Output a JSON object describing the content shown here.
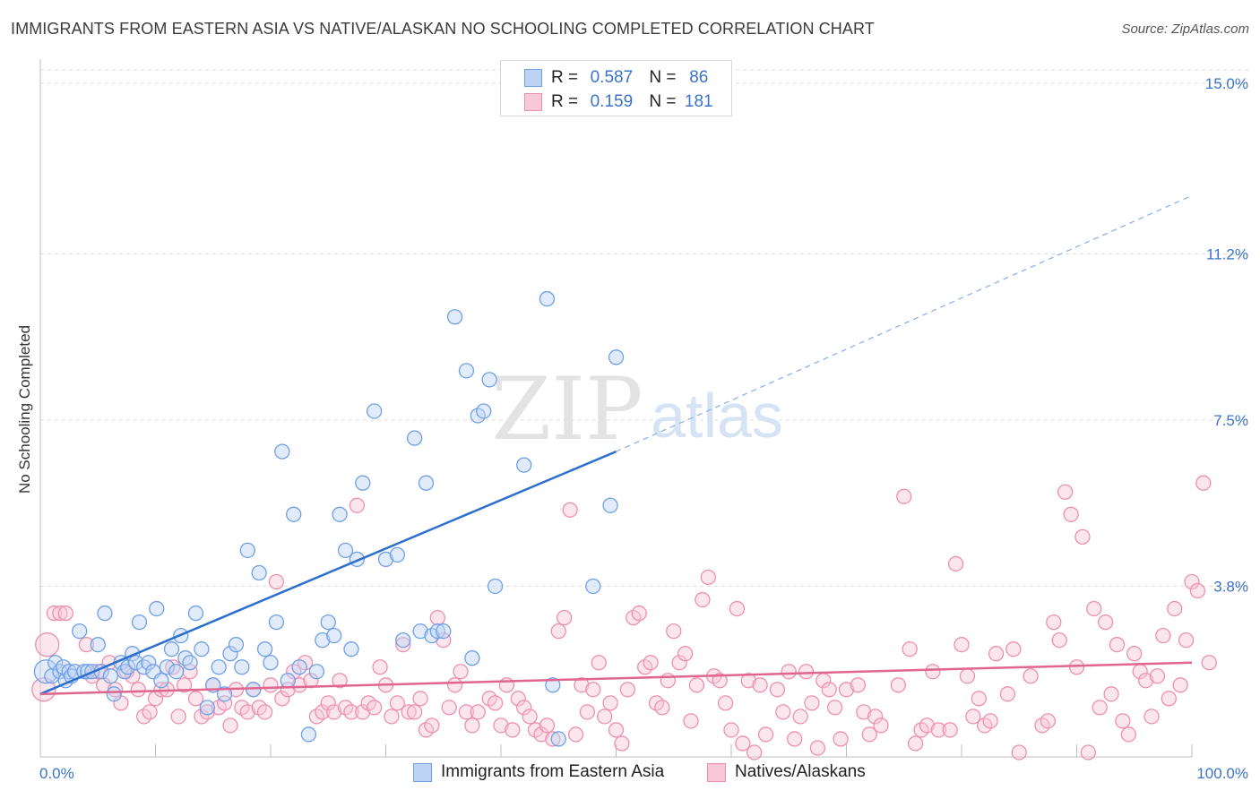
{
  "header": {
    "title": "IMMIGRANTS FROM EASTERN ASIA VS NATIVE/ALASKAN NO SCHOOLING COMPLETED CORRELATION CHART",
    "source": "Source: ZipAtlas.com"
  },
  "watermark": {
    "zip": "ZIP",
    "atlas": "atlas"
  },
  "legend": {
    "r_label": "R =",
    "n_label": "N =",
    "rows": [
      {
        "r": "0.587",
        "n": "86",
        "color": "#6fa0e6",
        "fill": "#bcd3f5"
      },
      {
        "r": "0.159",
        "n": "181",
        "color": "#ee8fae",
        "fill": "#f8c8d8"
      }
    ]
  },
  "bottom_legend": [
    {
      "label": "Immigrants from Eastern Asia",
      "color": "#6fa0e6",
      "fill": "#bcd3f5"
    },
    {
      "label": "Natives/Alaskans",
      "color": "#ee8fae",
      "fill": "#f8c8d8"
    }
  ],
  "chart_data": {
    "type": "scatter",
    "title": "IMMIGRANTS FROM EASTERN ASIA VS NATIVE/ALASKAN NO SCHOOLING COMPLETED CORRELATION CHART",
    "xlabel": "",
    "ylabel": "No Schooling Completed",
    "xlim": [
      0,
      100
    ],
    "ylim": [
      0,
      15.3
    ],
    "x_tick_labels": [
      "0.0%",
      "100.0%"
    ],
    "y_ticks": [
      3.8,
      7.5,
      11.2,
      15.0
    ],
    "y_tick_labels": [
      "3.8%",
      "7.5%",
      "11.2%",
      "15.0%"
    ],
    "grid": true,
    "legend_position": "top-center",
    "series": [
      {
        "name": "Immigrants from Eastern Asia",
        "color": "#6fa0e6",
        "fill": "#bcd3f5",
        "line_color": "#2b6fcf",
        "trend": {
          "x0": 0,
          "y0": 1.4,
          "x1": 50,
          "y1": 6.8,
          "dashed_to_x": 100,
          "dashed_to_y": 12.5
        },
        "points": [
          [
            0.5,
            1.9
          ],
          [
            1,
            1.8
          ],
          [
            1.3,
            2.1
          ],
          [
            1.7,
            1.9
          ],
          [
            2,
            2
          ],
          [
            2.2,
            1.7
          ],
          [
            2.5,
            1.9
          ],
          [
            2.7,
            1.8
          ],
          [
            3,
            1.9
          ],
          [
            3.4,
            2.8
          ],
          [
            3.8,
            1.9
          ],
          [
            4.1,
            1.9
          ],
          [
            4.5,
            1.9
          ],
          [
            5,
            2.5
          ],
          [
            5.3,
            1.9
          ],
          [
            5.6,
            3.2
          ],
          [
            6.1,
            1.8
          ],
          [
            6.4,
            1.4
          ],
          [
            7,
            2.1
          ],
          [
            7.3,
            1.9
          ],
          [
            7.6,
            2
          ],
          [
            8,
            2.3
          ],
          [
            8.3,
            2.1
          ],
          [
            8.6,
            3
          ],
          [
            9,
            2
          ],
          [
            9.4,
            2.1
          ],
          [
            9.8,
            1.9
          ],
          [
            10.1,
            3.3
          ],
          [
            10.5,
            1.7
          ],
          [
            11,
            2
          ],
          [
            11.4,
            2.4
          ],
          [
            11.8,
            1.9
          ],
          [
            12.2,
            2.7
          ],
          [
            12.6,
            2.2
          ],
          [
            13,
            2.1
          ],
          [
            13.5,
            3.2
          ],
          [
            14,
            2.4
          ],
          [
            14.5,
            1.1
          ],
          [
            15,
            1.6
          ],
          [
            15.5,
            2
          ],
          [
            16,
            1.4
          ],
          [
            16.5,
            2.3
          ],
          [
            17,
            2.5
          ],
          [
            17.5,
            2
          ],
          [
            18,
            4.6
          ],
          [
            18.5,
            1.5
          ],
          [
            19,
            4.1
          ],
          [
            19.5,
            2.4
          ],
          [
            20,
            2.1
          ],
          [
            20.5,
            3
          ],
          [
            21,
            6.8
          ],
          [
            21.5,
            1.7
          ],
          [
            22,
            5.4
          ],
          [
            22.5,
            2
          ],
          [
            23.3,
            0.5
          ],
          [
            24,
            1.9
          ],
          [
            24.5,
            2.6
          ],
          [
            25,
            3
          ],
          [
            25.5,
            2.7
          ],
          [
            26,
            5.4
          ],
          [
            26.5,
            4.6
          ],
          [
            27,
            2.4
          ],
          [
            27.5,
            4.4
          ],
          [
            28,
            6.1
          ],
          [
            29,
            7.7
          ],
          [
            30,
            4.4
          ],
          [
            31,
            4.5
          ],
          [
            31.5,
            2.6
          ],
          [
            32.5,
            7.1
          ],
          [
            33,
            2.8
          ],
          [
            33.5,
            6.1
          ],
          [
            34,
            2.7
          ],
          [
            34.5,
            2.8
          ],
          [
            35,
            2.8
          ],
          [
            36,
            9.8
          ],
          [
            37,
            8.6
          ],
          [
            37.5,
            2.2
          ],
          [
            38,
            7.6
          ],
          [
            38.5,
            7.7
          ],
          [
            39,
            8.4
          ],
          [
            39.5,
            3.8
          ],
          [
            42,
            6.5
          ],
          [
            44,
            10.2
          ],
          [
            44.5,
            1.6
          ],
          [
            45,
            0.4
          ],
          [
            48,
            3.8
          ],
          [
            49.5,
            5.6
          ],
          [
            50,
            8.9
          ]
        ]
      },
      {
        "name": "Natives/Alaskans",
        "color": "#ee8fae",
        "fill": "#f8c8d8",
        "line_color": "#e0658f",
        "trend": {
          "x0": 0,
          "y0": 1.4,
          "x1": 100,
          "y1": 2.1
        },
        "points": [
          [
            0.3,
            1.5
          ],
          [
            0.6,
            2.5
          ],
          [
            1.2,
            3.2
          ],
          [
            1.7,
            3.2
          ],
          [
            2.2,
            3.2
          ],
          [
            4,
            2.5
          ],
          [
            4.5,
            1.8
          ],
          [
            5,
            1.9
          ],
          [
            5.5,
            1.6
          ],
          [
            6,
            2.1
          ],
          [
            6.5,
            1.5
          ],
          [
            7,
            1.2
          ],
          [
            7.5,
            1.9
          ],
          [
            8,
            1.8
          ],
          [
            8.5,
            1.5
          ],
          [
            9,
            0.9
          ],
          [
            9.5,
            1
          ],
          [
            10,
            1.3
          ],
          [
            10.5,
            1.5
          ],
          [
            11,
            1.5
          ],
          [
            11.5,
            2
          ],
          [
            12,
            0.9
          ],
          [
            12.5,
            1.6
          ],
          [
            13,
            1.9
          ],
          [
            13.5,
            1.3
          ],
          [
            14,
            0.9
          ],
          [
            14.5,
            1
          ],
          [
            15,
            1.6
          ],
          [
            15.5,
            1.1
          ],
          [
            16,
            1.2
          ],
          [
            16.5,
            0.7
          ],
          [
            17,
            1.5
          ],
          [
            17.5,
            1.1
          ],
          [
            18,
            1
          ],
          [
            18.5,
            1.5
          ],
          [
            19,
            1.1
          ],
          [
            19.5,
            1
          ],
          [
            20,
            1.6
          ],
          [
            20.5,
            3.9
          ],
          [
            21,
            1.3
          ],
          [
            21.5,
            1.5
          ],
          [
            22,
            1.9
          ],
          [
            22.5,
            1.6
          ],
          [
            23,
            2.1
          ],
          [
            23.5,
            1.7
          ],
          [
            24,
            0.9
          ],
          [
            24.5,
            1
          ],
          [
            25,
            1.2
          ],
          [
            25.5,
            1
          ],
          [
            26,
            1.7
          ],
          [
            26.5,
            1.1
          ],
          [
            27,
            1
          ],
          [
            27.5,
            5.6
          ],
          [
            28,
            1
          ],
          [
            28.5,
            1.2
          ],
          [
            29,
            1.1
          ],
          [
            29.5,
            2
          ],
          [
            30,
            1.6
          ],
          [
            30.5,
            0.9
          ],
          [
            31,
            1.2
          ],
          [
            31.5,
            2.5
          ],
          [
            32,
            1
          ],
          [
            32.5,
            1
          ],
          [
            33,
            1.3
          ],
          [
            33.5,
            0.6
          ],
          [
            34,
            0.7
          ],
          [
            34.5,
            3.1
          ],
          [
            35,
            2.6
          ],
          [
            35.5,
            1.1
          ],
          [
            36,
            1.6
          ],
          [
            36.5,
            1.9
          ],
          [
            37,
            1
          ],
          [
            37.5,
            0.7
          ],
          [
            38,
            1
          ],
          [
            39,
            1.3
          ],
          [
            39.5,
            1.2
          ],
          [
            40,
            0.7
          ],
          [
            40.5,
            1.6
          ],
          [
            41,
            0.6
          ],
          [
            41.5,
            1.3
          ],
          [
            42,
            1.1
          ],
          [
            42.5,
            0.9
          ],
          [
            43,
            0.6
          ],
          [
            43.5,
            0.5
          ],
          [
            44,
            0.7
          ],
          [
            44.5,
            0.4
          ],
          [
            45,
            2.8
          ],
          [
            45.5,
            3.1
          ],
          [
            46,
            5.5
          ],
          [
            46.5,
            0.5
          ],
          [
            47,
            1.6
          ],
          [
            47.5,
            1
          ],
          [
            48,
            1.5
          ],
          [
            48.5,
            2.1
          ],
          [
            49,
            0.9
          ],
          [
            49.5,
            1.2
          ],
          [
            50,
            0.6
          ],
          [
            50.5,
            0.3
          ],
          [
            51,
            1.5
          ],
          [
            51.5,
            3.1
          ],
          [
            52,
            3.2
          ],
          [
            52.5,
            2
          ],
          [
            53,
            2.1
          ],
          [
            53.5,
            1.2
          ],
          [
            54,
            1.1
          ],
          [
            54.5,
            1.7
          ],
          [
            55,
            2.8
          ],
          [
            55.5,
            2.1
          ],
          [
            56,
            2.3
          ],
          [
            56.5,
            0.8
          ],
          [
            57,
            1.6
          ],
          [
            57.5,
            3.5
          ],
          [
            58,
            4
          ],
          [
            58.5,
            1.8
          ],
          [
            59,
            1.7
          ],
          [
            59.5,
            1.2
          ],
          [
            60,
            0.6
          ],
          [
            60.5,
            3.3
          ],
          [
            61,
            0.3
          ],
          [
            61.5,
            1.7
          ],
          [
            62,
            0.1
          ],
          [
            62.5,
            1.6
          ],
          [
            63,
            0.5
          ],
          [
            64,
            1.5
          ],
          [
            64.5,
            1
          ],
          [
            65,
            1.9
          ],
          [
            65.5,
            0.4
          ],
          [
            66,
            0.9
          ],
          [
            66.5,
            1.9
          ],
          [
            67,
            1.2
          ],
          [
            67.5,
            0.2
          ],
          [
            68,
            1.7
          ],
          [
            68.5,
            1.5
          ],
          [
            69,
            1.1
          ],
          [
            69.5,
            0.4
          ],
          [
            70,
            1.5
          ],
          [
            71,
            1.6
          ],
          [
            71.5,
            1
          ],
          [
            72,
            0.5
          ],
          [
            72.5,
            0.9
          ],
          [
            73,
            0.7
          ],
          [
            74.5,
            1.6
          ],
          [
            75,
            5.8
          ],
          [
            75.5,
            2.4
          ],
          [
            76,
            0.3
          ],
          [
            76.5,
            0.6
          ],
          [
            77,
            0.7
          ],
          [
            77.5,
            1.9
          ],
          [
            78,
            0.6
          ],
          [
            79,
            0.6
          ],
          [
            79.5,
            4.3
          ],
          [
            80,
            2.5
          ],
          [
            80.5,
            1.8
          ],
          [
            81,
            0.9
          ],
          [
            81.5,
            1.3
          ],
          [
            82,
            0.7
          ],
          [
            82.5,
            0.8
          ],
          [
            83,
            2.3
          ],
          [
            84,
            1.4
          ],
          [
            84.5,
            2.4
          ],
          [
            85,
            0.1
          ],
          [
            86,
            1.8
          ],
          [
            87,
            0.7
          ],
          [
            87.5,
            0.8
          ],
          [
            88,
            3
          ],
          [
            88.5,
            2.6
          ],
          [
            89,
            5.9
          ],
          [
            89.5,
            5.4
          ],
          [
            90,
            2
          ],
          [
            90.5,
            4.9
          ],
          [
            91,
            0.1
          ],
          [
            91.5,
            3.3
          ],
          [
            92,
            1.1
          ],
          [
            92.5,
            3
          ],
          [
            93,
            1.4
          ],
          [
            93.5,
            2.5
          ],
          [
            94,
            0.8
          ],
          [
            94.5,
            0.5
          ],
          [
            95,
            2.3
          ],
          [
            95.5,
            1.9
          ],
          [
            96,
            1.7
          ],
          [
            96.5,
            0.9
          ],
          [
            97,
            1.8
          ],
          [
            97.5,
            2.7
          ],
          [
            98,
            1.3
          ],
          [
            98.5,
            3.3
          ],
          [
            99,
            1.6
          ],
          [
            99.5,
            2.6
          ],
          [
            100,
            3.9
          ],
          [
            100.5,
            3.7
          ],
          [
            101,
            6.1
          ],
          [
            101.5,
            2.1
          ]
        ]
      }
    ]
  }
}
